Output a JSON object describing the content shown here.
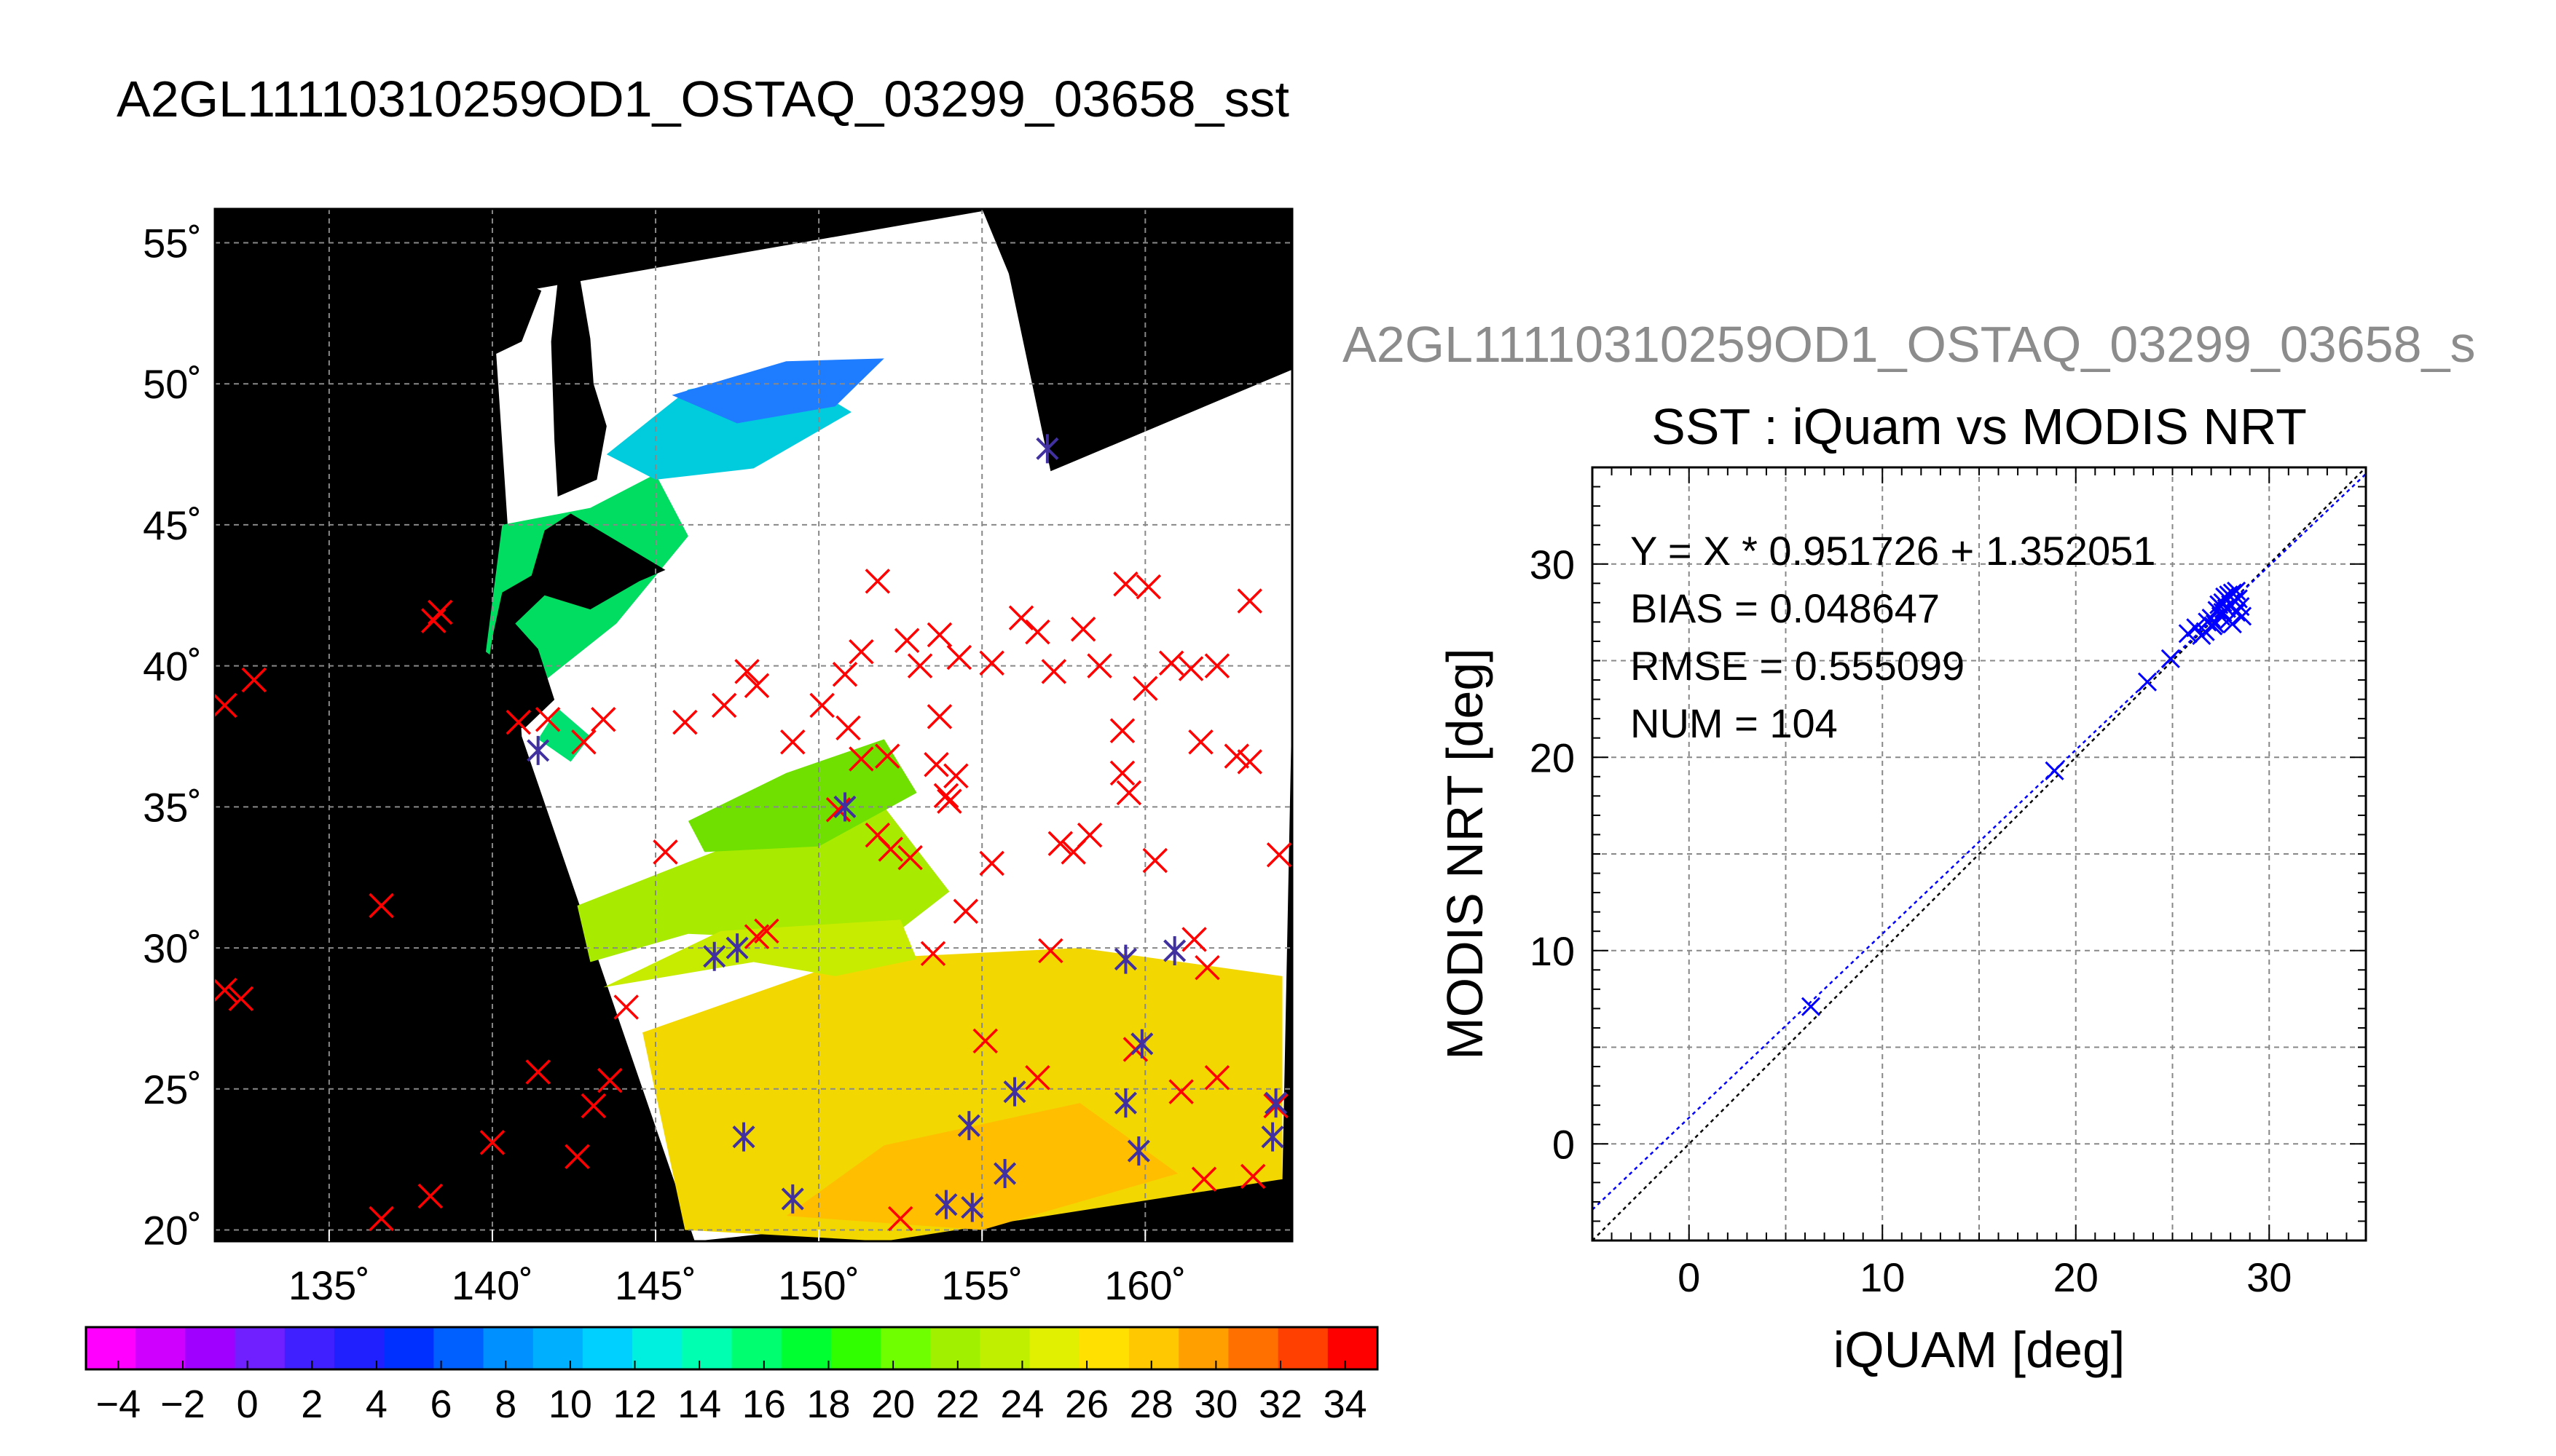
{
  "figure_title": "A2GL11110310259OD1_OSTAQ_03299_03658_sst",
  "chart_data": [
    {
      "type": "scatter",
      "panel": "map",
      "x_ticks": [
        "135˚",
        "140˚",
        "145˚",
        "150˚",
        "155˚",
        "160˚"
      ],
      "x_tick_values": [
        135,
        140,
        145,
        150,
        155,
        160
      ],
      "y_ticks": [
        "20˚",
        "25˚",
        "30˚",
        "35˚",
        "40˚",
        "45˚",
        "50˚",
        "55˚"
      ],
      "y_tick_values": [
        20,
        25,
        30,
        35,
        40,
        45,
        50,
        55
      ],
      "xlim": [
        131.5,
        164.5
      ],
      "ylim": [
        19.6,
        56.2
      ],
      "grid": true,
      "swath_corners": [
        [
          140.0,
          53.1
        ],
        [
          155.4,
          56.2
        ],
        [
          157.1,
          46.9
        ],
        [
          164.7,
          50.6
        ],
        [
          164.2,
          21.8
        ],
        [
          146.2,
          19.6
        ],
        [
          140.9,
          37.5
        ]
      ],
      "series": [
        {
          "marker": "x",
          "color": "#ff0000",
          "points": [
            [
              131.8,
              38.6
            ],
            [
              132.7,
              39.5
            ],
            [
              131.8,
              28.5
            ],
            [
              132.3,
              28.2
            ],
            [
              136.6,
              31.5
            ],
            [
              138.2,
              41.6
            ],
            [
              138.4,
              41.9
            ],
            [
              140.8,
              38.0
            ],
            [
              141.7,
              38.1
            ],
            [
              142.8,
              37.3
            ],
            [
              143.4,
              38.1
            ],
            [
              145.9,
              38.0
            ],
            [
              147.1,
              38.6
            ],
            [
              147.8,
              39.8
            ],
            [
              148.1,
              39.3
            ],
            [
              149.2,
              37.3
            ],
            [
              150.1,
              38.6
            ],
            [
              150.8,
              39.7
            ],
            [
              151.3,
              40.5
            ],
            [
              150.9,
              37.8
            ],
            [
              151.3,
              36.7
            ],
            [
              151.8,
              43.0
            ],
            [
              152.7,
              40.9
            ],
            [
              153.1,
              40.0
            ],
            [
              153.7,
              41.1
            ],
            [
              154.3,
              40.3
            ],
            [
              155.3,
              40.1
            ],
            [
              156.2,
              41.7
            ],
            [
              156.7,
              41.2
            ],
            [
              157.2,
              39.8
            ],
            [
              158.1,
              41.3
            ],
            [
              158.6,
              40.0
            ],
            [
              159.4,
              42.9
            ],
            [
              160.1,
              42.8
            ],
            [
              160.8,
              40.1
            ],
            [
              161.4,
              39.9
            ],
            [
              162.2,
              40.0
            ],
            [
              163.2,
              42.3
            ],
            [
              152.1,
              36.8
            ],
            [
              153.6,
              36.5
            ],
            [
              154.2,
              36.1
            ],
            [
              153.7,
              38.2
            ],
            [
              152.8,
              33.2
            ],
            [
              154.5,
              31.3
            ],
            [
              155.3,
              33.0
            ],
            [
              157.8,
              33.4
            ],
            [
              158.3,
              34.0
            ],
            [
              159.3,
              37.7
            ],
            [
              159.3,
              36.2
            ],
            [
              160.3,
              33.1
            ],
            [
              161.7,
              37.3
            ],
            [
              162.8,
              36.8
            ],
            [
              163.2,
              36.6
            ],
            [
              164.1,
              33.3
            ],
            [
              145.3,
              33.4
            ],
            [
              148.1,
              30.4
            ],
            [
              148.4,
              30.6
            ],
            [
              153.5,
              29.8
            ],
            [
              157.1,
              29.9
            ],
            [
              161.5,
              30.3
            ],
            [
              161.9,
              29.3
            ],
            [
              155.1,
              26.7
            ],
            [
              156.7,
              25.4
            ],
            [
              159.7,
              26.4
            ],
            [
              161.1,
              24.9
            ],
            [
              162.2,
              25.4
            ],
            [
              164.0,
              24.4
            ],
            [
              141.4,
              25.6
            ],
            [
              143.1,
              24.4
            ],
            [
              143.6,
              25.3
            ],
            [
              144.1,
              27.9
            ],
            [
              140.0,
              23.1
            ],
            [
              142.6,
              22.6
            ],
            [
              138.1,
              21.2
            ],
            [
              136.6,
              20.4
            ],
            [
              152.5,
              20.4
            ],
            [
              161.8,
              21.8
            ],
            [
              163.3,
              21.9
            ],
            [
              150.6,
              34.9
            ],
            [
              151.8,
              34.0
            ],
            [
              152.2,
              33.5
            ],
            [
              159.5,
              35.5
            ],
            [
              153.9,
              35.4
            ],
            [
              160.0,
              39.2
            ],
            [
              157.4,
              33.7
            ],
            [
              154.0,
              35.2
            ]
          ]
        },
        {
          "marker": "asterisk",
          "color": "#4030a0",
          "points": [
            [
              157.0,
              47.7
            ],
            [
              141.4,
              37.0
            ],
            [
              146.8,
              29.7
            ],
            [
              147.5,
              30.0
            ],
            [
              159.4,
              29.6
            ],
            [
              160.9,
              29.9
            ],
            [
              159.9,
              26.6
            ],
            [
              159.4,
              24.5
            ],
            [
              156.0,
              24.9
            ],
            [
              154.6,
              23.7
            ],
            [
              155.7,
              22.0
            ],
            [
              147.7,
              23.3
            ],
            [
              149.2,
              21.1
            ],
            [
              153.9,
              20.9
            ],
            [
              154.7,
              20.8
            ],
            [
              159.8,
              22.8
            ],
            [
              163.9,
              23.3
            ],
            [
              164.0,
              24.5
            ],
            [
              150.8,
              35.0
            ]
          ]
        }
      ]
    },
    {
      "type": "scatter",
      "panel": "iquam-vs-modis",
      "subtitle": "A2GL11110310259OD1_OSTAQ_03299_03658_s",
      "title": "SST : iQuam vs MODIS NRT",
      "xlabel": "iQUAM [deg]",
      "ylabel": "MODIS NRT [deg]",
      "xlim": [
        -5,
        35
      ],
      "ylim": [
        -5,
        35
      ],
      "x_ticks": [
        "0",
        "10",
        "20",
        "30"
      ],
      "x_tick_values": [
        0,
        10,
        20,
        30
      ],
      "y_ticks": [
        "0",
        "10",
        "20",
        "30"
      ],
      "y_tick_values": [
        0,
        10,
        20,
        30
      ],
      "grid": true,
      "annotations": [
        "Y = X * 0.951726 + 1.352051",
        "BIAS = 0.048647",
        "RMSE = 0.555099",
        "NUM = 104"
      ],
      "fit": {
        "slope": 0.951726,
        "intercept": 1.352051
      },
      "series": [
        {
          "marker": "x",
          "color": "#0000ff",
          "points": [
            [
              6.3,
              7.1
            ],
            [
              18.9,
              19.3
            ],
            [
              23.7,
              23.9
            ],
            [
              24.9,
              25.1
            ],
            [
              25.8,
              26.4
            ],
            [
              26.2,
              26.7
            ],
            [
              26.5,
              26.3
            ],
            [
              26.8,
              27.0
            ],
            [
              27.0,
              27.2
            ],
            [
              27.1,
              26.8
            ],
            [
              27.3,
              27.6
            ],
            [
              27.4,
              27.9
            ],
            [
              27.5,
              27.3
            ],
            [
              27.6,
              28.0
            ],
            [
              27.7,
              28.3
            ],
            [
              27.8,
              27.7
            ],
            [
              27.9,
              28.4
            ],
            [
              28.0,
              27.9
            ],
            [
              28.1,
              28.5
            ],
            [
              28.2,
              28.1
            ],
            [
              28.3,
              27.5
            ],
            [
              28.4,
              28.2
            ],
            [
              28.5,
              27.8
            ],
            [
              27.2,
              26.9
            ],
            [
              26.7,
              26.5
            ],
            [
              27.9,
              27.1
            ],
            [
              28.6,
              27.3
            ],
            [
              28.1,
              26.9
            ],
            [
              27.6,
              27.5
            ],
            [
              28.3,
              28.6
            ]
          ]
        }
      ]
    },
    {
      "type": "colorbar",
      "vmin": -5,
      "vmax": 35,
      "ticks": [
        "−4",
        "−2",
        "0",
        "2",
        "4",
        "6",
        "8",
        "10",
        "12",
        "14",
        "16",
        "18",
        "20",
        "22",
        "24",
        "26",
        "28",
        "30",
        "32",
        "34"
      ],
      "tick_values": [
        -4,
        -2,
        0,
        2,
        4,
        6,
        8,
        10,
        12,
        14,
        16,
        18,
        20,
        22,
        24,
        26,
        28,
        30,
        32,
        34
      ],
      "colors": [
        "#ff00ff",
        "#d000ff",
        "#a000ff",
        "#7020ff",
        "#4020ff",
        "#2020ff",
        "#0030ff",
        "#0060ff",
        "#0090ff",
        "#00b0ff",
        "#00d0ff",
        "#00f0e0",
        "#00ffb0",
        "#00ff70",
        "#00ff30",
        "#30ff00",
        "#70ff00",
        "#a0f000",
        "#c0f000",
        "#e0f000",
        "#ffe000",
        "#ffc800",
        "#ffa000",
        "#ff7000",
        "#ff4000",
        "#ff0000"
      ]
    }
  ]
}
